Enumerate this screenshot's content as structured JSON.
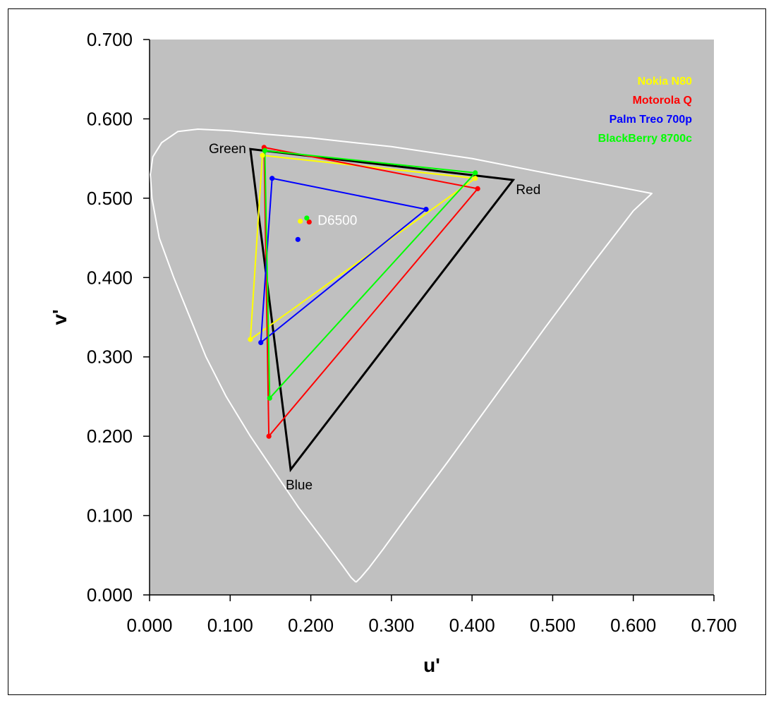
{
  "chart_data": {
    "type": "scatter",
    "title": "",
    "xlabel": "u'",
    "ylabel": "v'",
    "xlim": [
      0,
      0.7
    ],
    "ylim": [
      0,
      0.7
    ],
    "xticks": [
      "0.000",
      "0.100",
      "0.200",
      "0.300",
      "0.400",
      "0.500",
      "0.600",
      "0.700"
    ],
    "yticks": [
      "0.000",
      "0.100",
      "0.200",
      "0.300",
      "0.400",
      "0.500",
      "0.600",
      "0.700"
    ],
    "grid": false,
    "plot_background": "#c0c0c0",
    "legend_position": "top-right",
    "spectral_locus": {
      "color": "#ffffff",
      "points": [
        [
          0.256,
          0.016
        ],
        [
          0.262,
          0.022
        ],
        [
          0.272,
          0.034
        ],
        [
          0.29,
          0.058
        ],
        [
          0.32,
          0.1
        ],
        [
          0.37,
          0.168
        ],
        [
          0.43,
          0.252
        ],
        [
          0.49,
          0.336
        ],
        [
          0.55,
          0.418
        ],
        [
          0.6,
          0.484
        ],
        [
          0.623,
          0.506
        ],
        [
          0.5,
          0.53
        ],
        [
          0.4,
          0.55
        ],
        [
          0.3,
          0.565
        ],
        [
          0.2,
          0.576
        ],
        [
          0.14,
          0.581
        ],
        [
          0.1,
          0.585
        ],
        [
          0.06,
          0.587
        ],
        [
          0.035,
          0.584
        ],
        [
          0.015,
          0.57
        ],
        [
          0.004,
          0.552
        ],
        [
          0.001,
          0.53
        ],
        [
          0.003,
          0.5
        ],
        [
          0.012,
          0.45
        ],
        [
          0.03,
          0.4
        ],
        [
          0.05,
          0.35
        ],
        [
          0.07,
          0.3
        ],
        [
          0.095,
          0.25
        ],
        [
          0.125,
          0.2
        ],
        [
          0.155,
          0.155
        ],
        [
          0.185,
          0.11
        ],
        [
          0.215,
          0.07
        ],
        [
          0.24,
          0.036
        ],
        [
          0.25,
          0.022
        ],
        [
          0.256,
          0.016
        ]
      ]
    },
    "reference_gamut": {
      "color": "#000000",
      "vertices": [
        {
          "label": "Red",
          "u": 0.451,
          "v": 0.523
        },
        {
          "label": "Green",
          "u": 0.125,
          "v": 0.562
        },
        {
          "label": "Blue",
          "u": 0.175,
          "v": 0.158
        }
      ]
    },
    "white_point_label": "D6500",
    "series": [
      {
        "name": "Nokia N80",
        "color": "#ffff00",
        "red": [
          0.404,
          0.525
        ],
        "green": [
          0.14,
          0.554
        ],
        "blue": [
          0.125,
          0.322
        ],
        "white": [
          0.187,
          0.471
        ]
      },
      {
        "name": "Motorola Q",
        "color": "#ff0000",
        "red": [
          0.407,
          0.512
        ],
        "green": [
          0.142,
          0.564
        ],
        "blue": [
          0.148,
          0.2
        ],
        "white": [
          0.198,
          0.47
        ]
      },
      {
        "name": "Palm Treo 700p",
        "color": "#0000ff",
        "red": [
          0.343,
          0.486
        ],
        "green": [
          0.152,
          0.525
        ],
        "blue": [
          0.138,
          0.318
        ],
        "white": [
          0.184,
          0.448
        ]
      },
      {
        "name": "BlackBerry 8700c",
        "color": "#00ff00",
        "red": [
          0.404,
          0.532
        ],
        "green": [
          0.143,
          0.56
        ],
        "blue": [
          0.149,
          0.248
        ],
        "white": [
          0.195,
          0.475
        ]
      }
    ]
  }
}
